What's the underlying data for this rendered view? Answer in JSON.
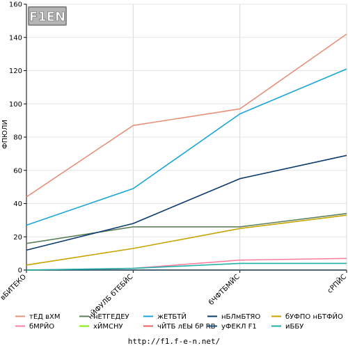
{
  "logo": {
    "text": "F1EN"
  },
  "footer": {
    "url": "http://f1.f-e-n.net/"
  },
  "chart_data": {
    "type": "line",
    "title": "",
    "xlabel": "",
    "ylabel": "ФПЮЛИ",
    "ylim": [
      0,
      160
    ],
    "yticks": [
      0,
      20,
      40,
      60,
      80,
      100,
      120,
      140,
      160
    ],
    "grid": true,
    "legend_position": "bottom",
    "categories": [
      "вБИТЕКО",
      "нЙФУЛБ бТЕБЙС",
      "бЧФТБМЙС",
      "сРПЙС"
    ],
    "series": [
      {
        "name": "тЕД вХМ",
        "color": "#e8907a",
        "values": [
          44,
          87,
          97,
          142
        ]
      },
      {
        "name": "нЕТГЕДЕУ",
        "color": "#5b7f5b",
        "values": [
          16,
          26,
          26,
          34
        ]
      },
      {
        "name": "жЕТБТЙ",
        "color": "#1aa5d8",
        "values": [
          27,
          49,
          94,
          121
        ]
      },
      {
        "name": "нБЛмБТЯО",
        "color": "#0b3a6b",
        "values": [
          12,
          28,
          55,
          69
        ]
      },
      {
        "name": "бУФПО нБТФЙО",
        "color": "#c8a400",
        "values": [
          3,
          13,
          25,
          33
        ]
      },
      {
        "name": "бМРЙО",
        "color": "#ff7fa0",
        "values": [
          0,
          1,
          6,
          7
        ]
      },
      {
        "name": "хЙМСНУ",
        "color": "#80ee00",
        "values": [
          0,
          0,
          0,
          0
        ]
      },
      {
        "name": "чЙТБ лЕЫ бР RB",
        "color": "#e86060",
        "values": [
          0,
          0,
          0,
          0
        ]
      },
      {
        "name": "уФЕКЛ F1",
        "color": "#1c4f7a",
        "values": [
          0,
          0,
          0,
          0
        ]
      },
      {
        "name": "иББУ",
        "color": "#20b2aa",
        "values": [
          0,
          1,
          4,
          4
        ]
      }
    ]
  }
}
